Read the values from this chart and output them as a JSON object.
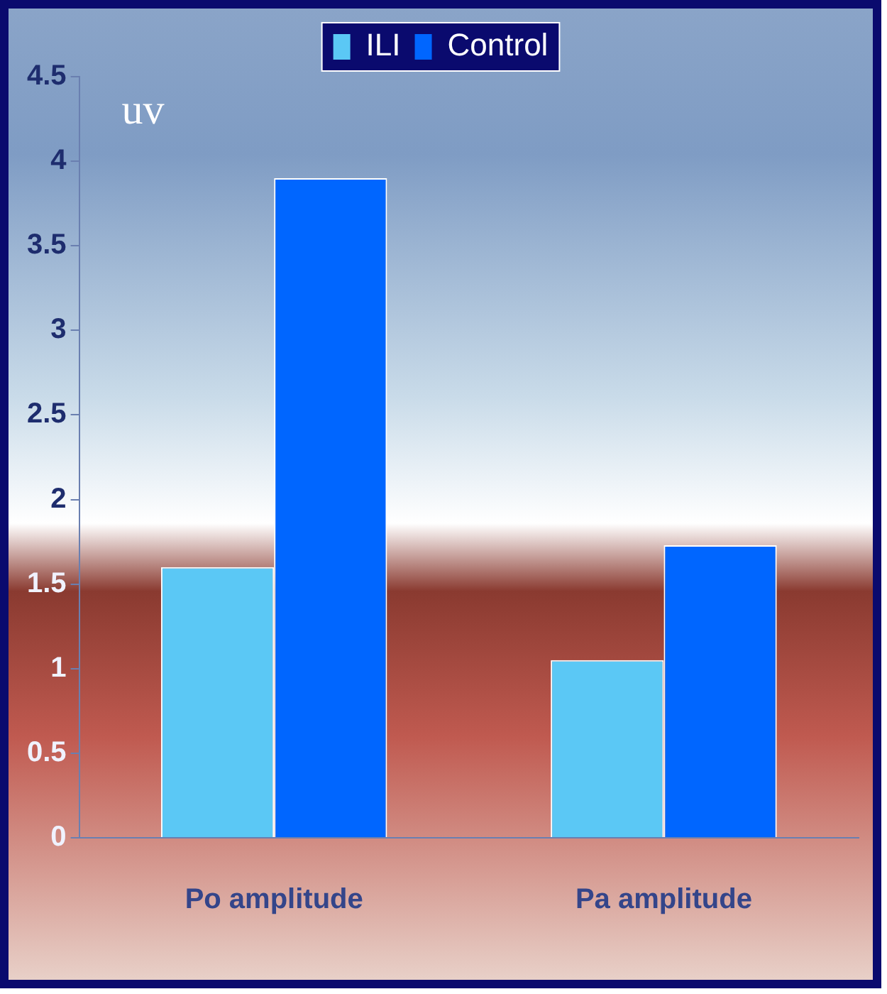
{
  "chart_data": {
    "type": "bar",
    "ylabel": "uv",
    "categories": [
      "Po amplitude",
      "Pa amplitude"
    ],
    "series": [
      {
        "name": "ILI",
        "color": "#5bc8f5",
        "values": [
          1.6,
          1.05
        ]
      },
      {
        "name": "Control",
        "color": "#0066ff",
        "values": [
          3.9,
          1.73
        ]
      }
    ],
    "ylim": [
      0,
      4.5
    ],
    "yticks": [
      0,
      0.5,
      1,
      1.5,
      2,
      2.5,
      3,
      3.5,
      4,
      4.5
    ],
    "grid": false,
    "legend": "top"
  }
}
